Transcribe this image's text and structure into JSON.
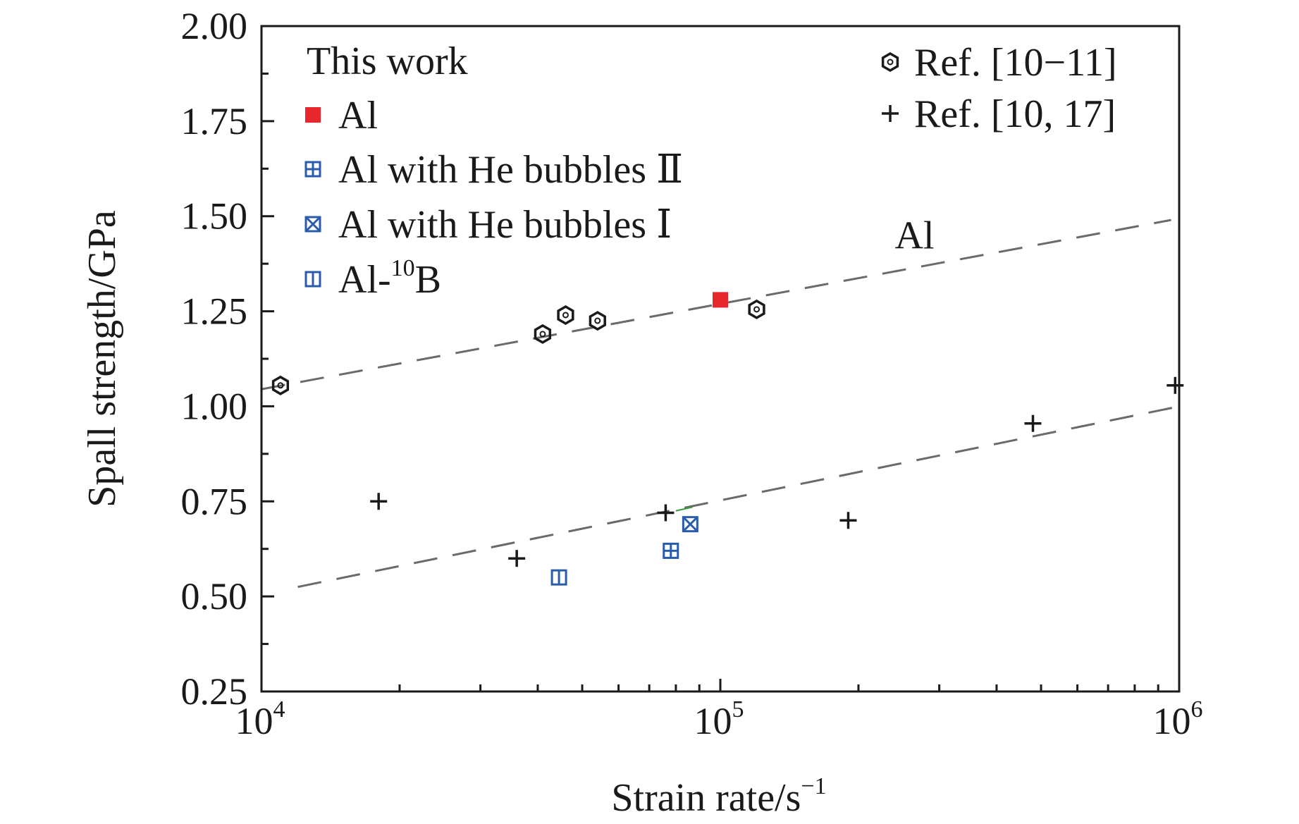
{
  "chart_data": {
    "type": "scatter",
    "xlabel": "Strain rate/s",
    "xlabel_superscript": "−1",
    "ylabel": "Spall strength/GPa",
    "xscale": "log",
    "xlim": [
      10000,
      1000000
    ],
    "ylim": [
      0.25,
      2.0
    ],
    "yticks": [
      "0.25",
      "0.50",
      "0.75",
      "1.00",
      "1.25",
      "1.50",
      "1.75",
      "2.00"
    ],
    "xticks": [
      {
        "value": 10000,
        "base": "10",
        "exp": "4"
      },
      {
        "value": 100000,
        "base": "10",
        "exp": "5"
      },
      {
        "value": 1000000,
        "base": "10",
        "exp": "6"
      }
    ],
    "grid": false,
    "legend_placement": "top",
    "legend_left_title": "This work",
    "series": [
      {
        "name": "Al",
        "marker": "filled-square",
        "color": "#e8262e",
        "group": "left",
        "points": [
          [
            100000,
            1.28
          ]
        ]
      },
      {
        "name": "Al with He bubbles Ⅱ",
        "marker": "square-plus",
        "color": "#2a5cab",
        "group": "left",
        "points": [
          [
            78000,
            0.62
          ]
        ]
      },
      {
        "name": "Al with He bubbles Ⅰ",
        "marker": "square-x",
        "color": "#2a5cab",
        "group": "left",
        "points": [
          [
            86000,
            0.69
          ]
        ]
      },
      {
        "name": "Al-¹⁰B",
        "name_parts": [
          "Al-",
          "10",
          "B"
        ],
        "marker": "square-bar",
        "color": "#2a5cab",
        "group": "left",
        "points": [
          [
            44500,
            0.55
          ]
        ]
      },
      {
        "name": "Ref. [10−11]",
        "marker": "hexagon",
        "color": "#1a1a1a",
        "group": "right",
        "points": [
          [
            11000,
            1.055
          ],
          [
            41000,
            1.19
          ],
          [
            46000,
            1.24
          ],
          [
            54000,
            1.225
          ],
          [
            120000,
            1.255
          ]
        ]
      },
      {
        "name": "Ref. [10, 17]",
        "marker": "plus",
        "color": "#1a1a1a",
        "group": "right",
        "points": [
          [
            18000,
            0.75
          ],
          [
            36000,
            0.6
          ],
          [
            76000,
            0.72
          ],
          [
            190000,
            0.7
          ],
          [
            480000,
            0.955
          ],
          [
            980000,
            1.055
          ]
        ]
      }
    ],
    "fit_lines": [
      {
        "label": "Al",
        "style": "dashed",
        "color": "#6a6a6a",
        "points": [
          [
            10000,
            1.045
          ],
          [
            960000,
            1.49
          ]
        ]
      },
      {
        "label": "",
        "style": "dashed",
        "color": "#6a6a6a",
        "points": [
          [
            12000,
            0.525
          ],
          [
            1100000,
            1.01
          ]
        ]
      }
    ],
    "annotations": [
      {
        "text": "Al",
        "x": 240000,
        "y": 1.415
      }
    ]
  }
}
